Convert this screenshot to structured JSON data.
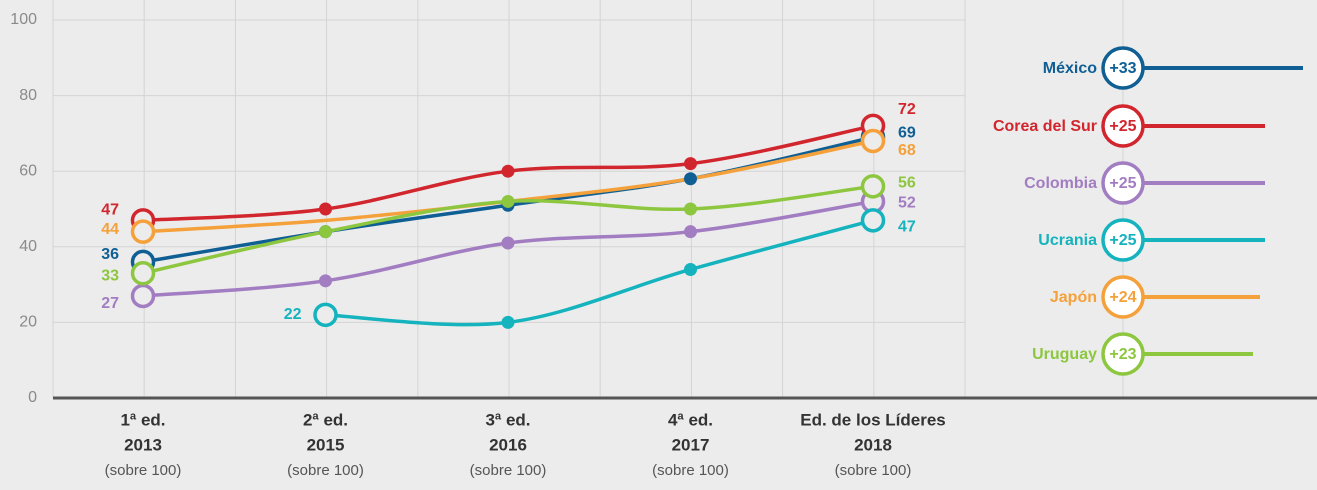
{
  "chart_data": {
    "type": "line",
    "categories": [
      "1ª ed.",
      "2ª ed.",
      "3ª ed.",
      "4ª ed.",
      "Ed. de los Líderes"
    ],
    "category_years": [
      "2013",
      "2015",
      "2016",
      "2017",
      "2018"
    ],
    "category_note": "(sobre 100)",
    "ylim": [
      0,
      100
    ],
    "yticks": [
      0,
      20,
      40,
      60,
      80,
      100
    ],
    "grid": true,
    "series": [
      {
        "name": "México",
        "color": "#0f5f94",
        "values": [
          36,
          44,
          51,
          58,
          69
        ],
        "change": "+33",
        "markers": true
      },
      {
        "name": "Corea del Sur",
        "color": "#d2262e",
        "values": [
          47,
          50,
          60,
          62,
          72
        ],
        "change": "+25",
        "markers": true
      },
      {
        "name": "Colombia",
        "color": "#a27dc2",
        "values": [
          27,
          31,
          41,
          44,
          52
        ],
        "change": "+25",
        "markers": true
      },
      {
        "name": "Ucrania",
        "color": "#14b3bd",
        "values": [
          null,
          22,
          20,
          34,
          47
        ],
        "change": "+25",
        "markers": true
      },
      {
        "name": "Japón",
        "color": "#f5a13b",
        "values": [
          44,
          47,
          52,
          58,
          68
        ],
        "change": "+24",
        "markers": false
      },
      {
        "name": "Uruguay",
        "color": "#8dc63f",
        "values": [
          33,
          44,
          52,
          50,
          56
        ],
        "change": "+23",
        "markers": true
      }
    ]
  }
}
